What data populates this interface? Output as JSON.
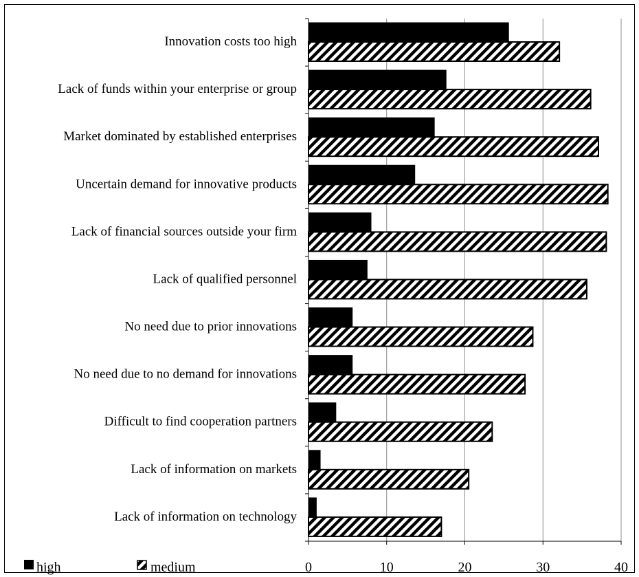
{
  "chart_data": {
    "type": "bar",
    "orientation": "horizontal",
    "categories": [
      "Innovation costs too high",
      "Lack of funds within your enterprise or group",
      "Market dominated by established enterprises",
      "Uncertain demand for innovative products",
      "Lack of financial sources outside your firm",
      "Lack of qualified personnel",
      "No need due to prior innovations",
      "No need due to no demand for innovations",
      "Difficult to find cooperation partners",
      "Lack of information on markets",
      "Lack of information on technology"
    ],
    "series": [
      {
        "name": "high",
        "pattern": "solid",
        "color": "#000000",
        "values": [
          25.6,
          17.6,
          16.1,
          13.6,
          8.0,
          7.5,
          5.6,
          5.6,
          3.5,
          1.5,
          1.0
        ]
      },
      {
        "name": "medium",
        "pattern": "hatched",
        "color": "#000000",
        "values": [
          32.1,
          36.1,
          37.1,
          38.3,
          38.1,
          35.6,
          28.7,
          27.7,
          23.5,
          20.5,
          17.0
        ]
      }
    ],
    "xlim": [
      0,
      40
    ],
    "xticks": [
      "0",
      "10",
      "20",
      "30",
      "40"
    ],
    "grid": "vertical",
    "legend": {
      "position": "bottom-left"
    },
    "title": "",
    "xlabel": "",
    "ylabel": ""
  }
}
